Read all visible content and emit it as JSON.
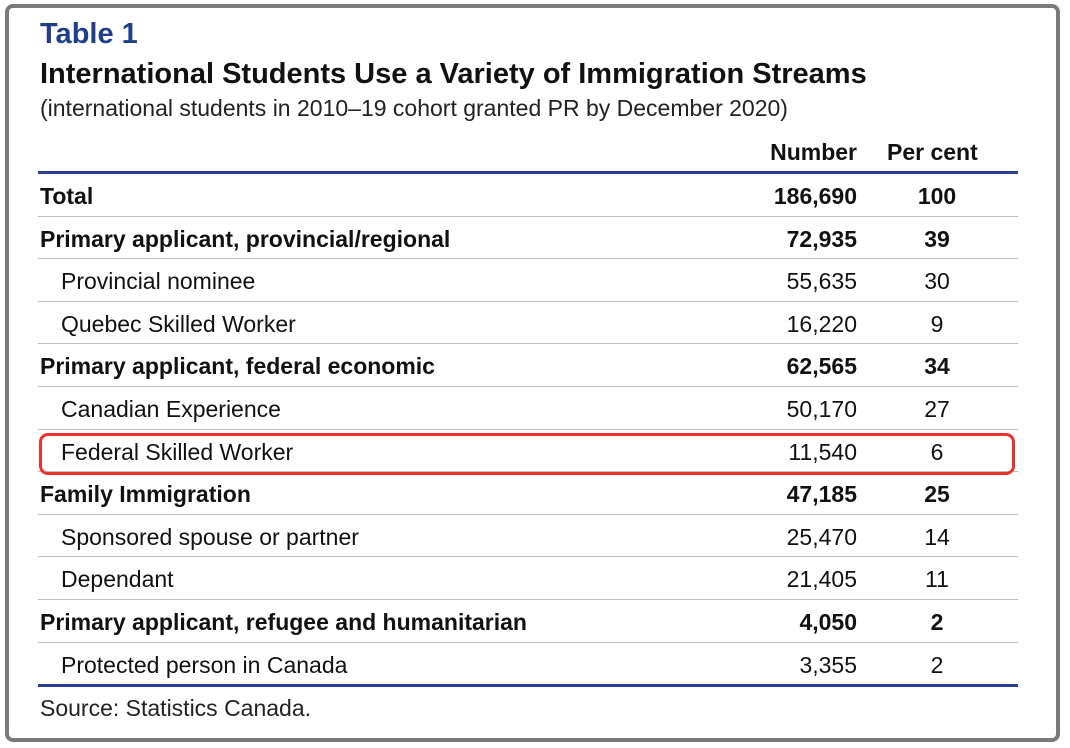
{
  "table_label": "Table 1",
  "title": "International Students Use a Variety of Immigration Streams",
  "subtitle": "(international students in 2010–19 cohort granted PR by December 2020)",
  "columns": {
    "number": "Number",
    "percent": "Per cent"
  },
  "rows": [
    {
      "label": "Total",
      "number": "186,690",
      "percent": "100",
      "bold": true,
      "indent": false
    },
    {
      "label": "Primary applicant, provincial/regional",
      "number": "72,935",
      "percent": "39",
      "bold": true,
      "indent": false
    },
    {
      "label": "Provincial nominee",
      "number": "55,635",
      "percent": "30",
      "bold": false,
      "indent": true
    },
    {
      "label": "Quebec Skilled Worker",
      "number": "16,220",
      "percent": "9",
      "bold": false,
      "indent": true
    },
    {
      "label": "Primary applicant, federal economic",
      "number": "62,565",
      "percent": "34",
      "bold": true,
      "indent": false
    },
    {
      "label": "Canadian Experience",
      "number": "50,170",
      "percent": "27",
      "bold": false,
      "indent": true
    },
    {
      "label": "Federal Skilled Worker",
      "number": "11,540",
      "percent": "6",
      "bold": false,
      "indent": true,
      "highlighted": true
    },
    {
      "label": "Family Immigration",
      "number": "47,185",
      "percent": "25",
      "bold": true,
      "indent": false
    },
    {
      "label": "Sponsored spouse or partner",
      "number": "25,470",
      "percent": "14",
      "bold": false,
      "indent": true
    },
    {
      "label": "Dependant",
      "number": "21,405",
      "percent": "11",
      "bold": false,
      "indent": true
    },
    {
      "label": "Primary applicant, refugee and humanitarian",
      "number": "4,050",
      "percent": "2",
      "bold": true,
      "indent": false
    },
    {
      "label": "Protected person in Canada",
      "number": "3,355",
      "percent": "2",
      "bold": false,
      "indent": true
    }
  ],
  "source": "Source: Statistics Canada.",
  "colors": {
    "title_blue": "#1f3f8a",
    "rule_blue": "#2a3f8f",
    "highlight_red": "#e8322a",
    "frame_gray": "#7a7a7a"
  }
}
